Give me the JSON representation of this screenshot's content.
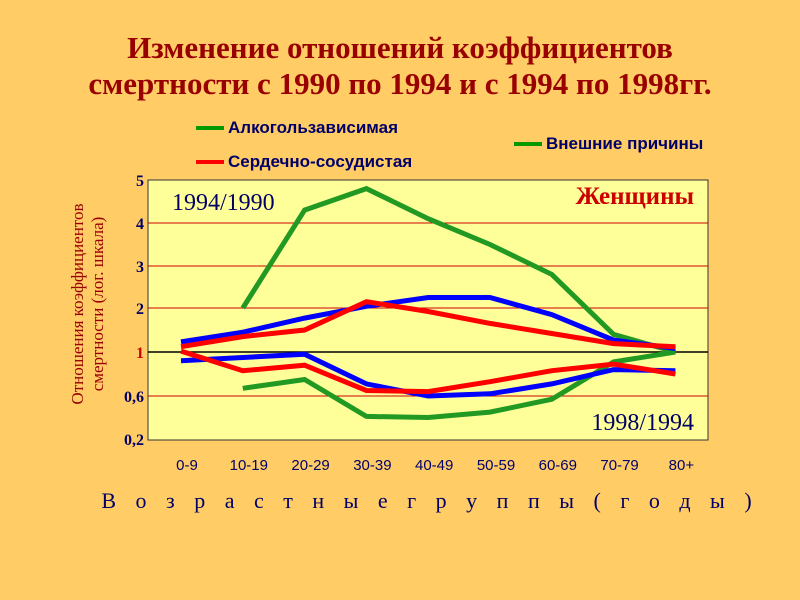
{
  "chart_data": {
    "type": "line",
    "title": "Изменение отношений коэффициентов смертности с 1990 по 1994 и с 1994 по 1998гг.",
    "title_lines": [
      "Изменение отношений коэффициентов",
      "смертности с 1990 по 1994 и с 1994 по 1998гг."
    ],
    "xlabel": "В о з р а с т н ы е   г р у п п ы   ( г о д ы )",
    "ylabel_lines": [
      "Отношения коэффициентов",
      "смертности (лог. шкала)"
    ],
    "categories": [
      "0-9",
      "10-19",
      "20-29",
      "30-39",
      "40-49",
      "50-59",
      "60-69",
      "70-79",
      "80+"
    ],
    "yticks": [
      "5",
      "4",
      "3",
      "2",
      "1",
      "0,6",
      "0,2"
    ],
    "ytick_values": [
      5,
      4,
      3,
      2,
      1,
      0.6,
      0.2
    ],
    "annotations": {
      "top_left": "1994/1990",
      "bottom_right": "1998/1994",
      "group": "Женщины"
    },
    "legend": [
      {
        "name": "Алкогользависимая",
        "color": "#009900"
      },
      {
        "name": "Сердечно-сосудистая",
        "color": "#FF0000"
      },
      {
        "name": "Внешние причины",
        "color": "#009900"
      }
    ],
    "series": [
      {
        "name": "Алкогользависимая 1994/1990",
        "color": "#229922",
        "values": [
          null,
          2.0,
          4.3,
          4.8,
          4.1,
          3.5,
          2.8,
          1.4,
          1.0
        ]
      },
      {
        "name": "Алкогользависимая 1998/1994",
        "color": "#229922",
        "values": [
          null,
          0.67,
          0.75,
          0.41,
          0.4,
          0.45,
          0.57,
          0.91,
          1.0
        ]
      },
      {
        "name": "Внешние причины 1994/1990",
        "color": "#0000FF",
        "values": [
          1.23,
          1.45,
          1.77,
          2.04,
          2.25,
          2.25,
          1.85,
          1.27,
          1.08
        ]
      },
      {
        "name": "Сердечно-сосудистая 1994/1990",
        "color": "#FF0000",
        "values": [
          1.12,
          1.35,
          1.5,
          2.15,
          1.92,
          1.65,
          1.42,
          1.19,
          1.12
        ]
      },
      {
        "name": "Внешние причины 1998/1994",
        "color": "#0000FF",
        "values": [
          0.92,
          0.95,
          0.98,
          0.71,
          0.6,
          0.62,
          0.71,
          0.84,
          0.83
        ]
      },
      {
        "name": "Сердечно-сосудистая 1998/1994",
        "color": "#FF0000",
        "values": [
          1.02,
          0.83,
          0.88,
          0.65,
          0.64,
          0.73,
          0.83,
          0.89,
          0.8
        ]
      }
    ]
  }
}
